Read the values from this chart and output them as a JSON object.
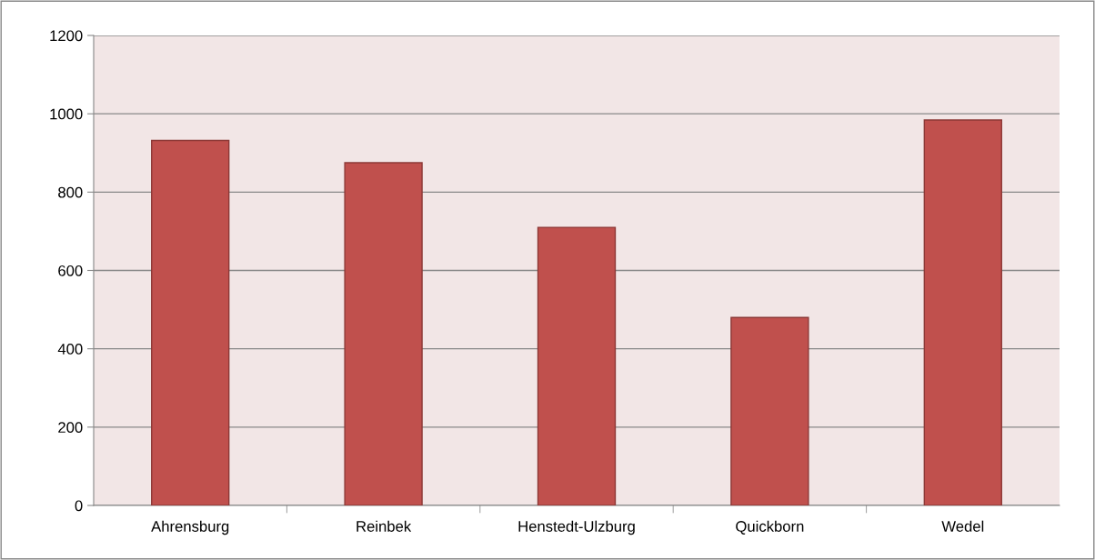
{
  "chart_data": {
    "type": "bar",
    "categories": [
      "Ahrensburg",
      "Reinbek",
      "Henstedt-Ulzburg",
      "Quickborn",
      "Wedel"
    ],
    "values": [
      932,
      875,
      710,
      480,
      984
    ],
    "color": "#c0504d",
    "ylim": [
      0,
      1200
    ],
    "yticks": [
      0,
      200,
      400,
      600,
      800,
      1000,
      1200
    ],
    "grid": "y"
  }
}
